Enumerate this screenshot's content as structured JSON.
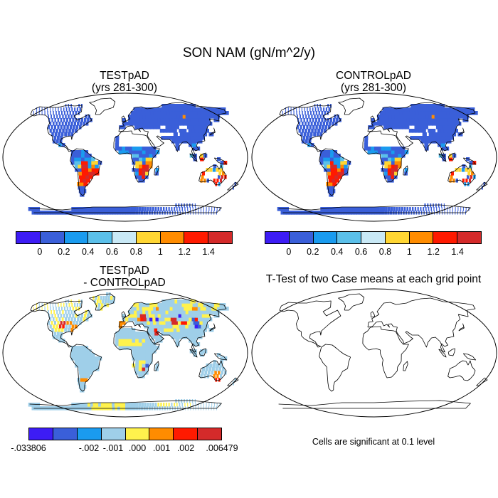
{
  "title": "SON NAM (gN/m^2/y)",
  "panels": {
    "test": {
      "title_line1": "TESTpAD",
      "title_line2": "(yrs 281-300)"
    },
    "control": {
      "title_line1": "CONTROLpAD",
      "title_line2": "(yrs 281-300)"
    },
    "diff": {
      "title_line1": "TESTpAD",
      "title_line2": "- CONTROLpAD"
    },
    "ttest": {
      "title": "T-Test of two Case means at each grid point",
      "note": "Cells are significant at 0.1 level"
    }
  },
  "colorbars": {
    "absolute": {
      "colors": [
        "#3d1cf5",
        "#3a5fd9",
        "#1a9bef",
        "#5bc0ea",
        "#c9e9f6",
        "#ffd633",
        "#ff8c00",
        "#ff1a00",
        "#d42a2a"
      ],
      "labels": [
        "0",
        "0.2",
        "0.4",
        "0.6",
        "0.8",
        "1",
        "1.2",
        "1.4"
      ]
    },
    "difference": {
      "colors": [
        "#3d1cf5",
        "#3a5fd9",
        "#1a9bef",
        "#9fcfe9",
        "#fff24d",
        "#ff8c00",
        "#ff1a00",
        "#d42a2a"
      ],
      "labels": [
        "-.033806",
        "-.002",
        "-.001",
        ".000",
        ".001",
        ".002",
        ".006479"
      ]
    }
  }
}
